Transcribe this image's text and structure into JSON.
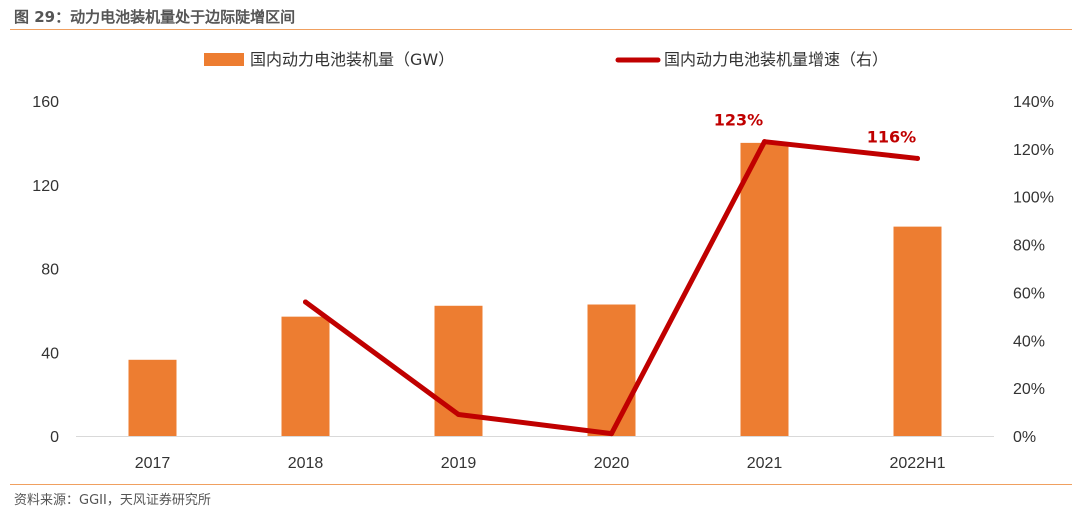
{
  "header": {
    "title": "图 29：动力电池装机量处于边际陡增区间"
  },
  "footer": {
    "source": "资料来源：GGII，天风证券研究所"
  },
  "colors": {
    "bar": "#ED7D31",
    "line": "#C00000",
    "rule": "#F0A060"
  },
  "chart_data": {
    "type": "bar",
    "categories": [
      "2017",
      "2018",
      "2019",
      "2020",
      "2021",
      "2022H1"
    ],
    "series": [
      {
        "name": "国内动力电池装机量（GW）",
        "type": "bar",
        "axis": "left",
        "values": [
          36.4,
          57.0,
          62.2,
          62.8,
          140.0,
          100.0
        ]
      },
      {
        "name": "国内动力电池装机量增速（右）",
        "type": "line",
        "axis": "right",
        "values": [
          null,
          56,
          9,
          1,
          123,
          116
        ]
      }
    ],
    "data_labels": [
      {
        "category": "2021",
        "text": "123%"
      },
      {
        "category": "2022H1",
        "text": "116%"
      }
    ],
    "y_left": {
      "min": 0,
      "max": 160,
      "ticks": [
        "0",
        "40",
        "80",
        "120",
        "160"
      ]
    },
    "y_right": {
      "min": 0,
      "max": 140,
      "ticks": [
        "0%",
        "20%",
        "40%",
        "60%",
        "80%",
        "100%",
        "120%",
        "140%"
      ]
    },
    "legend_position": "top",
    "grid": false
  }
}
